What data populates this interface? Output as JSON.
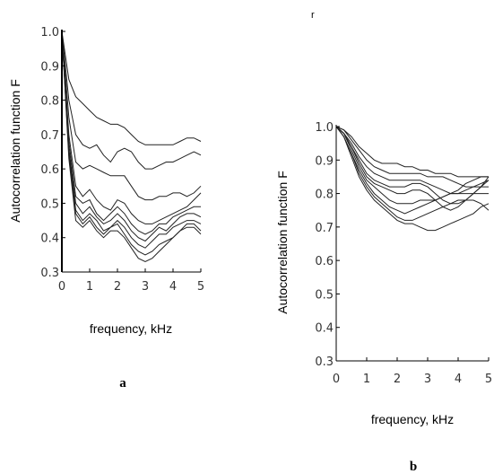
{
  "stray_mark": "r",
  "chart_data": [
    {
      "type": "line",
      "panel_label": "a",
      "xlabel": "frequency, kHz",
      "ylabel": "Autocorrelation function F",
      "xlim": [
        0,
        5
      ],
      "ylim": [
        0.3,
        1.0
      ],
      "x_ticks": [
        "0",
        "1",
        "2",
        "3",
        "4",
        "5"
      ],
      "y_ticks": [
        "0.3",
        "0.4",
        "0.5",
        "0.6",
        "0.7",
        "0.8",
        "0.9",
        "1.0"
      ],
      "grid": false,
      "x": [
        0,
        0.25,
        0.5,
        0.75,
        1.0,
        1.25,
        1.5,
        1.75,
        2.0,
        2.25,
        2.5,
        2.75,
        3.0,
        3.25,
        3.5,
        3.75,
        4.0,
        4.25,
        4.5,
        4.75,
        5.0
      ],
      "series": [
        {
          "values": [
            1.0,
            0.86,
            0.81,
            0.79,
            0.77,
            0.75,
            0.74,
            0.73,
            0.73,
            0.72,
            0.7,
            0.68,
            0.67,
            0.67,
            0.67,
            0.67,
            0.67,
            0.68,
            0.69,
            0.69,
            0.68
          ]
        },
        {
          "values": [
            1.0,
            0.8,
            0.7,
            0.67,
            0.66,
            0.67,
            0.64,
            0.62,
            0.65,
            0.66,
            0.65,
            0.62,
            0.6,
            0.6,
            0.61,
            0.62,
            0.62,
            0.63,
            0.64,
            0.65,
            0.64
          ]
        },
        {
          "values": [
            1.0,
            0.75,
            0.62,
            0.6,
            0.61,
            0.6,
            0.59,
            0.58,
            0.58,
            0.58,
            0.55,
            0.52,
            0.51,
            0.51,
            0.52,
            0.52,
            0.53,
            0.53,
            0.52,
            0.53,
            0.55
          ]
        },
        {
          "values": [
            1.0,
            0.7,
            0.55,
            0.52,
            0.54,
            0.51,
            0.49,
            0.48,
            0.51,
            0.5,
            0.47,
            0.45,
            0.44,
            0.44,
            0.45,
            0.46,
            0.47,
            0.48,
            0.49,
            0.51,
            0.53
          ]
        },
        {
          "values": [
            1.0,
            0.68,
            0.52,
            0.5,
            0.51,
            0.47,
            0.45,
            0.47,
            0.49,
            0.47,
            0.44,
            0.42,
            0.41,
            0.42,
            0.44,
            0.44,
            0.46,
            0.47,
            0.48,
            0.49,
            0.49
          ]
        },
        {
          "values": [
            1.0,
            0.66,
            0.5,
            0.47,
            0.49,
            0.46,
            0.44,
            0.45,
            0.47,
            0.45,
            0.42,
            0.4,
            0.39,
            0.41,
            0.43,
            0.42,
            0.44,
            0.46,
            0.47,
            0.47,
            0.46
          ]
        },
        {
          "values": [
            1.0,
            0.65,
            0.48,
            0.45,
            0.47,
            0.45,
            0.42,
            0.43,
            0.45,
            0.43,
            0.4,
            0.38,
            0.37,
            0.39,
            0.41,
            0.41,
            0.43,
            0.44,
            0.45,
            0.45,
            0.44
          ]
        },
        {
          "values": [
            1.0,
            0.64,
            0.47,
            0.44,
            0.46,
            0.43,
            0.41,
            0.43,
            0.44,
            0.41,
            0.38,
            0.36,
            0.35,
            0.36,
            0.38,
            0.39,
            0.4,
            0.42,
            0.44,
            0.44,
            0.42
          ]
        },
        {
          "values": [
            1.0,
            0.63,
            0.45,
            0.43,
            0.45,
            0.42,
            0.4,
            0.42,
            0.42,
            0.4,
            0.37,
            0.34,
            0.33,
            0.34,
            0.36,
            0.38,
            0.4,
            0.42,
            0.43,
            0.43,
            0.41
          ]
        }
      ]
    },
    {
      "type": "line",
      "panel_label": "b",
      "xlabel": "frequency, kHz",
      "ylabel": "Autocorrelation function F",
      "xlim": [
        0,
        5
      ],
      "ylim": [
        0.3,
        1.0
      ],
      "x_ticks": [
        "0",
        "1",
        "2",
        "3",
        "4",
        "5"
      ],
      "y_ticks": [
        "0.3",
        "0.4",
        "0.5",
        "0.6",
        "0.7",
        "0.8",
        "0.9",
        "1.0"
      ],
      "grid": false,
      "x": [
        0,
        0.25,
        0.5,
        0.75,
        1.0,
        1.25,
        1.5,
        1.75,
        2.0,
        2.25,
        2.5,
        2.75,
        3.0,
        3.25,
        3.5,
        3.75,
        4.0,
        4.25,
        4.5,
        4.75,
        5.0
      ],
      "series": [
        {
          "values": [
            1.0,
            0.99,
            0.97,
            0.94,
            0.92,
            0.9,
            0.89,
            0.89,
            0.89,
            0.88,
            0.88,
            0.87,
            0.87,
            0.86,
            0.86,
            0.86,
            0.85,
            0.85,
            0.85,
            0.85,
            0.85
          ]
        },
        {
          "values": [
            1.0,
            0.99,
            0.96,
            0.93,
            0.9,
            0.88,
            0.87,
            0.86,
            0.86,
            0.86,
            0.86,
            0.86,
            0.85,
            0.85,
            0.85,
            0.84,
            0.83,
            0.82,
            0.82,
            0.82,
            0.82
          ]
        },
        {
          "values": [
            1.0,
            0.98,
            0.95,
            0.91,
            0.88,
            0.86,
            0.85,
            0.84,
            0.84,
            0.84,
            0.84,
            0.84,
            0.83,
            0.82,
            0.81,
            0.8,
            0.8,
            0.81,
            0.82,
            0.83,
            0.84
          ]
        },
        {
          "values": [
            1.0,
            0.98,
            0.94,
            0.9,
            0.86,
            0.84,
            0.83,
            0.82,
            0.82,
            0.82,
            0.83,
            0.83,
            0.82,
            0.8,
            0.78,
            0.77,
            0.77,
            0.78,
            0.8,
            0.82,
            0.85
          ]
        },
        {
          "values": [
            1.0,
            0.98,
            0.94,
            0.89,
            0.85,
            0.83,
            0.82,
            0.81,
            0.8,
            0.8,
            0.81,
            0.81,
            0.8,
            0.78,
            0.76,
            0.75,
            0.76,
            0.78,
            0.8,
            0.82,
            0.84
          ]
        },
        {
          "values": [
            1.0,
            0.98,
            0.93,
            0.88,
            0.84,
            0.82,
            0.8,
            0.78,
            0.77,
            0.77,
            0.77,
            0.78,
            0.78,
            0.78,
            0.79,
            0.8,
            0.81,
            0.83,
            0.84,
            0.85,
            0.85
          ]
        },
        {
          "values": [
            1.0,
            0.97,
            0.92,
            0.87,
            0.83,
            0.8,
            0.78,
            0.76,
            0.75,
            0.74,
            0.75,
            0.76,
            0.77,
            0.78,
            0.79,
            0.8,
            0.8,
            0.8,
            0.8,
            0.8,
            0.8
          ]
        },
        {
          "values": [
            1.0,
            0.97,
            0.92,
            0.86,
            0.82,
            0.79,
            0.77,
            0.75,
            0.73,
            0.72,
            0.72,
            0.73,
            0.74,
            0.75,
            0.76,
            0.77,
            0.78,
            0.78,
            0.78,
            0.77,
            0.75
          ]
        },
        {
          "values": [
            1.0,
            0.97,
            0.91,
            0.85,
            0.81,
            0.78,
            0.76,
            0.74,
            0.72,
            0.71,
            0.71,
            0.7,
            0.69,
            0.69,
            0.7,
            0.71,
            0.72,
            0.73,
            0.74,
            0.76,
            0.77
          ]
        }
      ]
    }
  ]
}
